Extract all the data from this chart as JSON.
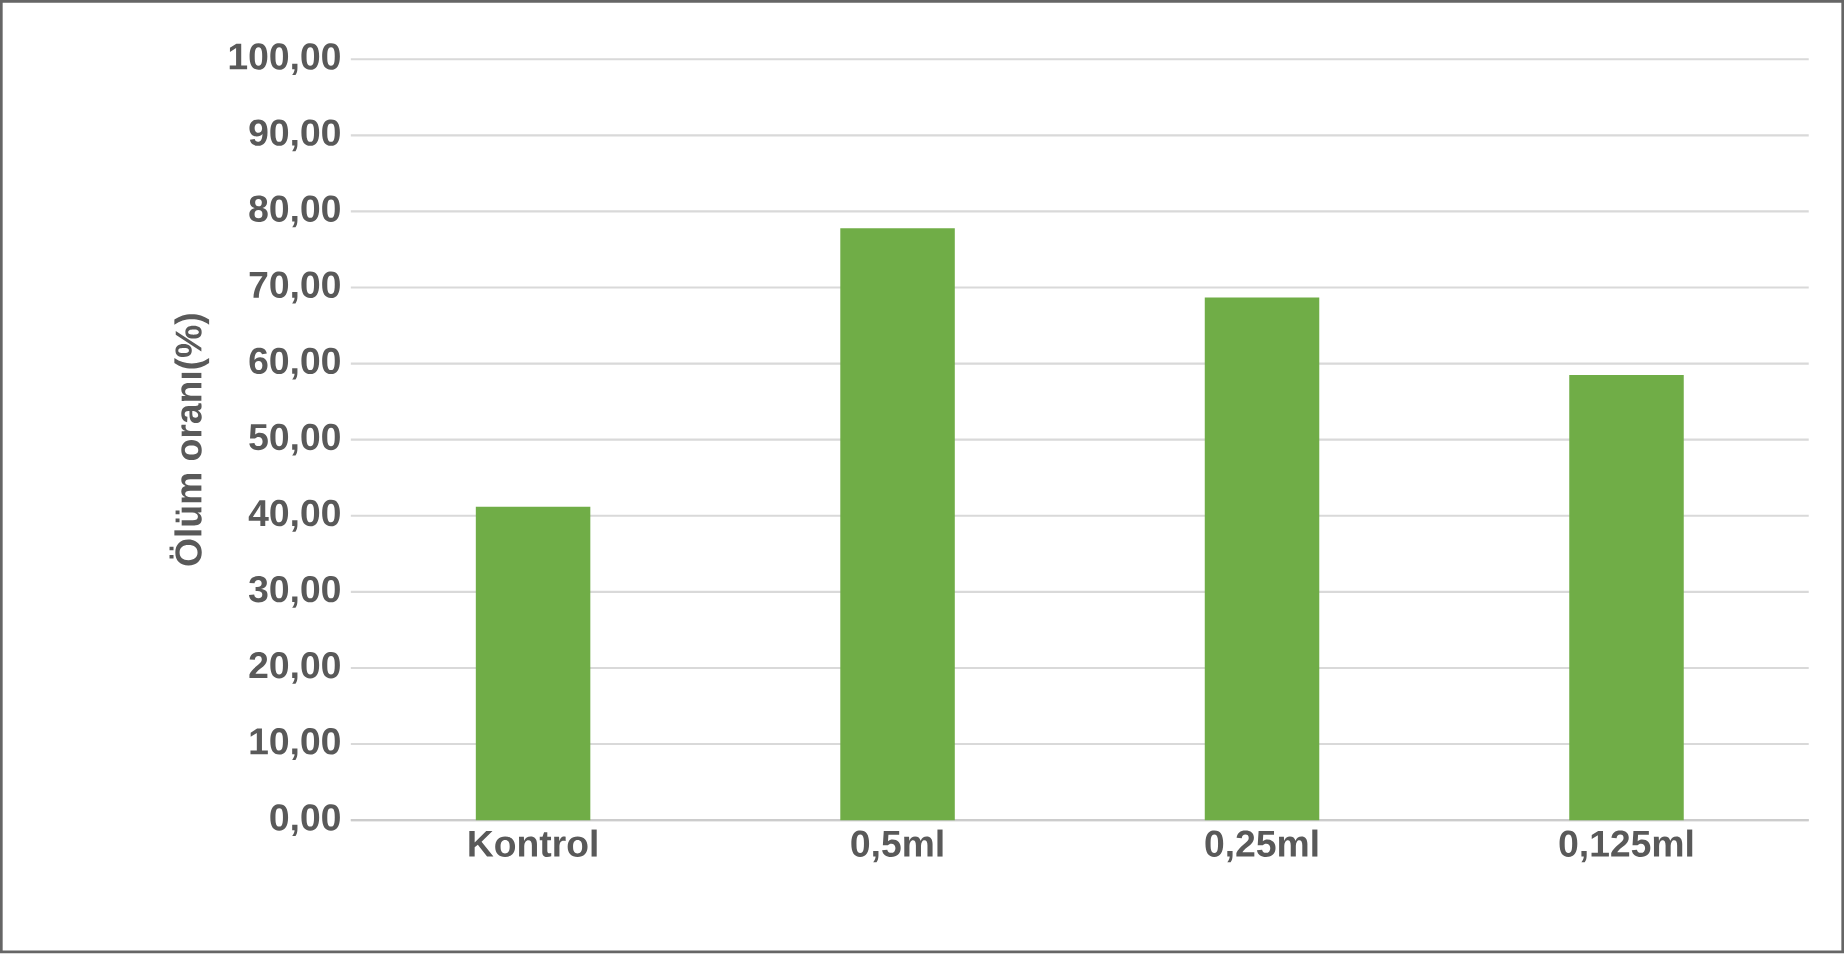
{
  "chart_data": {
    "type": "bar",
    "ylabel": "Ölüm oranı(%)",
    "categories": [
      "Kontrol",
      "0,5ml",
      "0,25ml",
      "0,125ml"
    ],
    "values": [
      41.2,
      77.8,
      68.7,
      58.5
    ],
    "color": "#70ad47",
    "ylim": [
      0,
      100
    ],
    "yticks": [
      {
        "value": 0,
        "label": "0,00"
      },
      {
        "value": 10,
        "label": "10,00"
      },
      {
        "value": 20,
        "label": "20,00"
      },
      {
        "value": 30,
        "label": "30,00"
      },
      {
        "value": 40,
        "label": "40,00"
      },
      {
        "value": 50,
        "label": "50,00"
      },
      {
        "value": 60,
        "label": "60,00"
      },
      {
        "value": 70,
        "label": "70,00"
      },
      {
        "value": 80,
        "label": "80,00"
      },
      {
        "value": 90,
        "label": "90,00"
      },
      {
        "value": 100,
        "label": "100,00"
      }
    ],
    "grid": "y"
  }
}
